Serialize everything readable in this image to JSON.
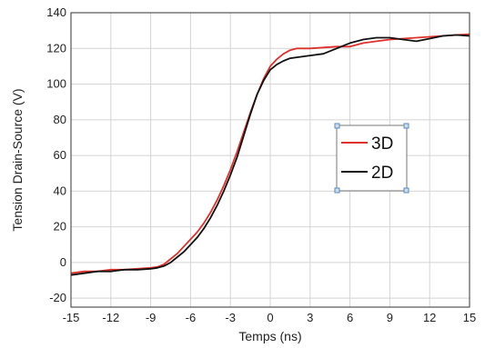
{
  "chart_data": {
    "type": "line",
    "title": "",
    "xlabel": "Temps (ns)",
    "ylabel": "Tension Drain-Source (V)",
    "xlim": [
      -15,
      15
    ],
    "ylim": [
      -25,
      140
    ],
    "x_ticks": [
      "-15",
      "-12",
      "-9",
      "-6",
      "-3",
      "0",
      "3",
      "6",
      "9",
      "12",
      "15"
    ],
    "y_ticks": [
      "-20",
      "0",
      "20",
      "40",
      "60",
      "80",
      "100",
      "120",
      "140"
    ],
    "grid": true,
    "legend_position": "center-right",
    "series": [
      {
        "name": "3D",
        "color": "#e0302a",
        "points": [
          [
            -15,
            -6
          ],
          [
            -14,
            -5
          ],
          [
            -13,
            -5
          ],
          [
            -12,
            -4
          ],
          [
            -11,
            -4
          ],
          [
            -10,
            -3.5
          ],
          [
            -9,
            -3
          ],
          [
            -8.5,
            -2.5
          ],
          [
            -8,
            -1
          ],
          [
            -7.5,
            2
          ],
          [
            -7,
            5
          ],
          [
            -6.5,
            9
          ],
          [
            -6,
            13
          ],
          [
            -5.5,
            17
          ],
          [
            -5,
            22
          ],
          [
            -4.5,
            28
          ],
          [
            -4,
            35
          ],
          [
            -3.5,
            43
          ],
          [
            -3,
            52
          ],
          [
            -2.5,
            62
          ],
          [
            -2,
            73
          ],
          [
            -1.5,
            84
          ],
          [
            -1,
            94
          ],
          [
            -0.5,
            103
          ],
          [
            0,
            110
          ],
          [
            0.5,
            114
          ],
          [
            1,
            117
          ],
          [
            1.5,
            119
          ],
          [
            2,
            120
          ],
          [
            3,
            120
          ],
          [
            4,
            120.5
          ],
          [
            5,
            121
          ],
          [
            6,
            121
          ],
          [
            7,
            123
          ],
          [
            8,
            124
          ],
          [
            9,
            125
          ],
          [
            10,
            125.5
          ],
          [
            11,
            126
          ],
          [
            12,
            126.5
          ],
          [
            13,
            127
          ],
          [
            14,
            127.5
          ],
          [
            15,
            128
          ]
        ]
      },
      {
        "name": "2D",
        "color": "#111111",
        "points": [
          [
            -15,
            -7
          ],
          [
            -14,
            -6
          ],
          [
            -13,
            -5
          ],
          [
            -12,
            -5
          ],
          [
            -11,
            -4
          ],
          [
            -10,
            -4
          ],
          [
            -9,
            -3.5
          ],
          [
            -8.5,
            -3
          ],
          [
            -8,
            -2
          ],
          [
            -7.5,
            0
          ],
          [
            -7,
            3
          ],
          [
            -6.5,
            6
          ],
          [
            -6,
            10
          ],
          [
            -5.5,
            14
          ],
          [
            -5,
            19
          ],
          [
            -4.5,
            25
          ],
          [
            -4,
            32
          ],
          [
            -3.5,
            40
          ],
          [
            -3,
            49
          ],
          [
            -2.5,
            59
          ],
          [
            -2,
            71
          ],
          [
            -1.5,
            83
          ],
          [
            -1,
            94
          ],
          [
            -0.5,
            102
          ],
          [
            0,
            108
          ],
          [
            0.5,
            111
          ],
          [
            1,
            113
          ],
          [
            1.5,
            114.5
          ],
          [
            2,
            115
          ],
          [
            3,
            116
          ],
          [
            4,
            117
          ],
          [
            5,
            120
          ],
          [
            6,
            123
          ],
          [
            7,
            125
          ],
          [
            8,
            126
          ],
          [
            9,
            126
          ],
          [
            10,
            125
          ],
          [
            11,
            124
          ],
          [
            12,
            125.5
          ],
          [
            13,
            127
          ],
          [
            14,
            127.5
          ],
          [
            15,
            127
          ]
        ]
      }
    ]
  }
}
